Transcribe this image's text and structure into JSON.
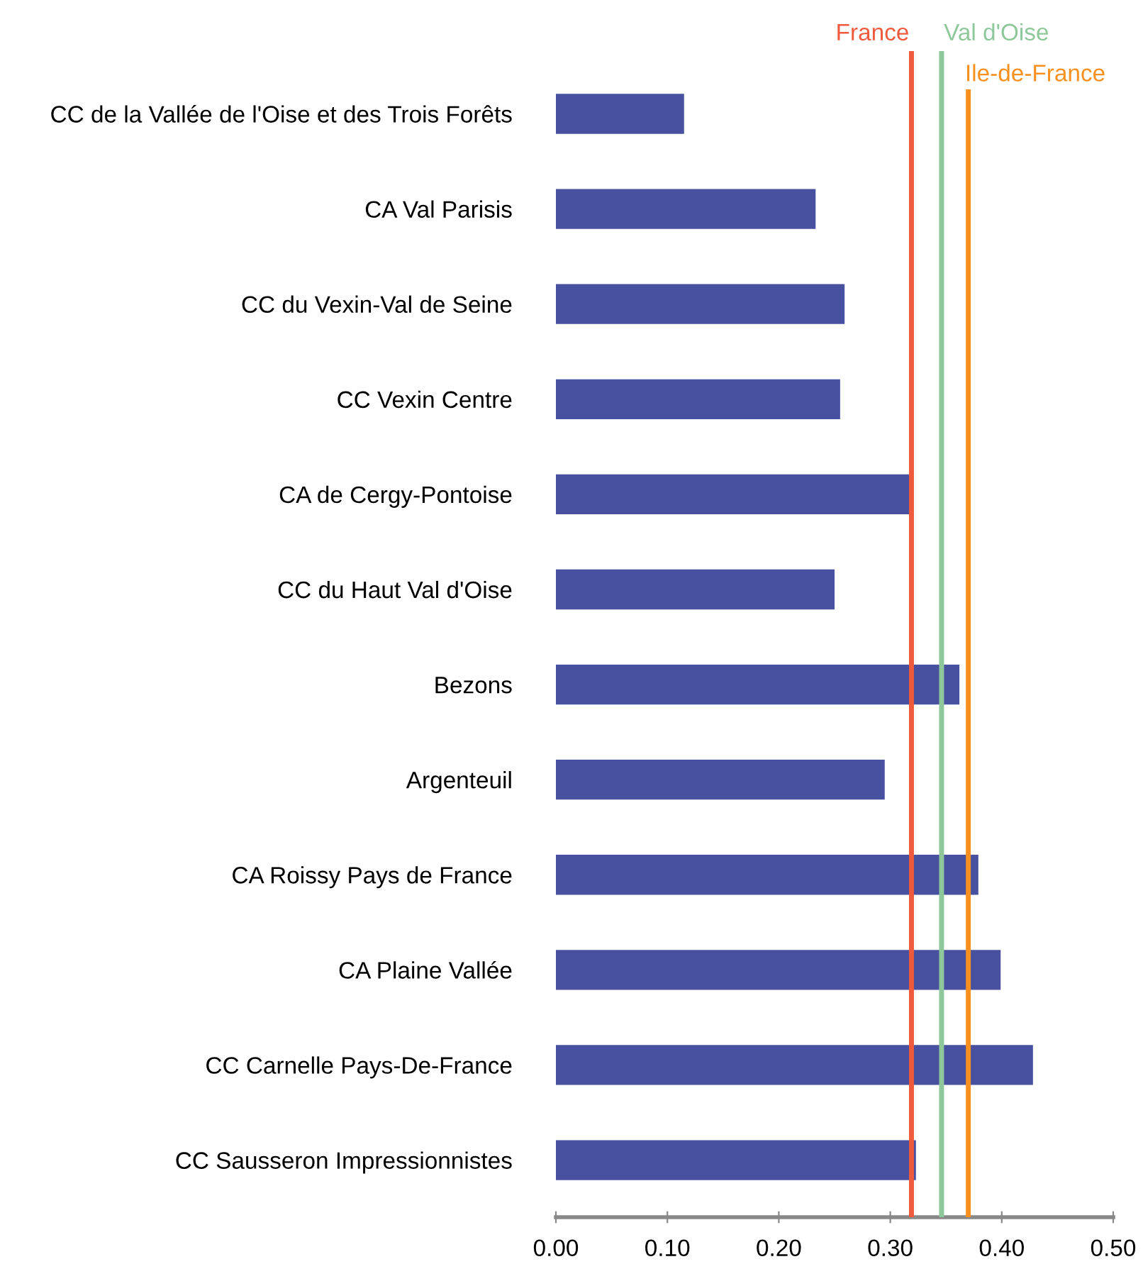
{
  "chart_data": {
    "type": "bar",
    "orientation": "horizontal",
    "categories": [
      "CC de la Vallée de l'Oise et des Trois Forêts",
      "CA Val Parisis",
      "CC du Vexin-Val de Seine",
      "CC Vexin Centre",
      "CA de Cergy-Pontoise",
      "CC du Haut Val d'Oise",
      "Bezons",
      "Argenteuil",
      "CA Roissy Pays de France",
      "CA Plaine Vallée",
      "CC Carnelle Pays-De-France",
      "CC Sausseron Impressionnistes"
    ],
    "series": [
      {
        "color": "#4850a0",
        "values": [
          0.115,
          0.233,
          0.259,
          0.255,
          0.318,
          0.25,
          0.362,
          0.295,
          0.379,
          0.399,
          0.428,
          0.323
        ]
      }
    ],
    "xlim": [
      0,
      0.5
    ],
    "xticks": [
      {
        "value": 0,
        "label": "0.00"
      },
      {
        "value": 0.1,
        "label": "0.10"
      },
      {
        "value": 0.2,
        "label": "0.20"
      },
      {
        "value": 0.3,
        "label": "0.30"
      },
      {
        "value": 0.4,
        "label": "0.40"
      },
      {
        "value": 0.5,
        "label": "0.50"
      }
    ],
    "ref_lines": [
      {
        "axis": "x",
        "value": 0.319,
        "label": "France",
        "color": "#f05a3c"
      },
      {
        "axis": "x",
        "value": 0.346,
        "label": "Val d'Oise",
        "color": "#8ec89a"
      },
      {
        "axis": "x",
        "value": 0.37,
        "label": "Ile-de-France",
        "color": "#f7901e"
      }
    ],
    "grid": false,
    "legend": false
  }
}
